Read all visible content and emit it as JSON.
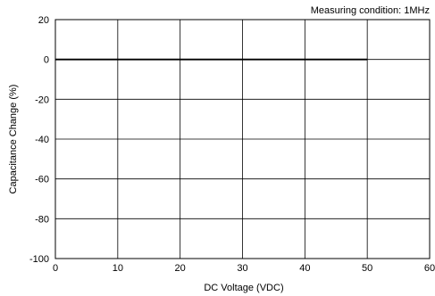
{
  "chart_data": {
    "type": "line",
    "annotation": "Measuring condition: 1MHz",
    "xlabel": "DC Voltage (VDC)",
    "ylabel": "Capacitance Change (%)",
    "xlim": [
      0,
      60
    ],
    "ylim": [
      -100,
      20
    ],
    "xticks": [
      0,
      10,
      20,
      30,
      40,
      50,
      60
    ],
    "yticks": [
      20,
      0,
      -20,
      -40,
      -60,
      -80,
      -100
    ],
    "grid": true,
    "series": [
      {
        "x": [
          0,
          10,
          20,
          30,
          40,
          50
        ],
        "y": [
          0,
          0,
          0,
          0,
          0,
          0
        ]
      }
    ]
  },
  "colors": {
    "grid": "#000000",
    "line": "#000000"
  }
}
